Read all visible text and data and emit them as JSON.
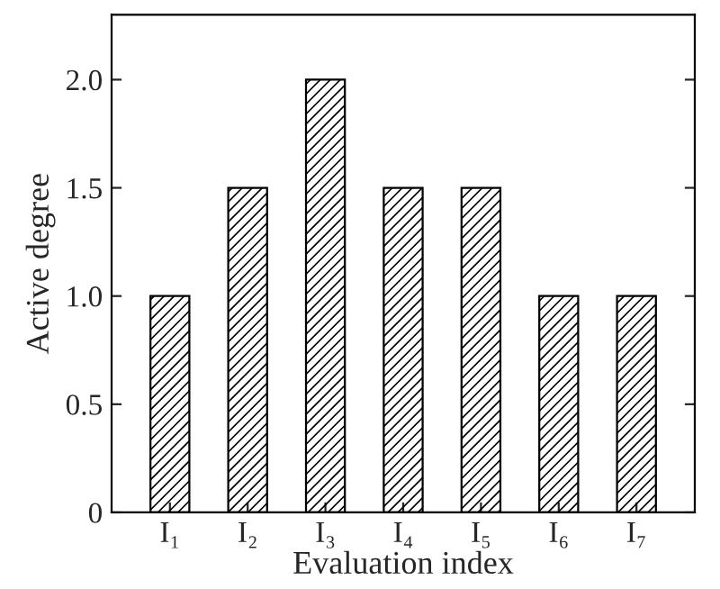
{
  "chart_data": {
    "type": "bar",
    "xlabel": "Evaluation index",
    "ylabel": "Active degree",
    "categories": [
      "I₁",
      "I₂",
      "I₃",
      "I₄",
      "I₅",
      "I₆",
      "I₇"
    ],
    "values": [
      1.0,
      1.5,
      2.0,
      1.5,
      1.5,
      1.0,
      1.0
    ],
    "color": "#000000",
    "ylim": [
      0,
      2.3
    ],
    "yticks": [
      0,
      {
        "value": 0.5,
        "label": "0.5"
      },
      {
        "value": 1.0,
        "label": "1.0"
      },
      {
        "value": 1.5,
        "label": "1.5"
      },
      {
        "value": 2.0,
        "label": "2.0"
      }
    ],
    "grid": false
  }
}
